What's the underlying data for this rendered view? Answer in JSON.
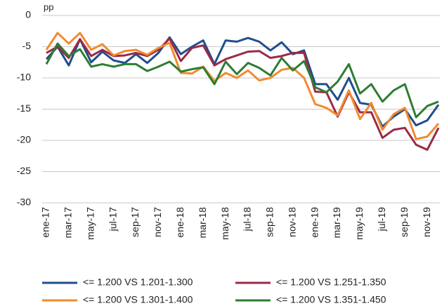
{
  "chart_data": {
    "type": "line",
    "unit_label": "pp",
    "categories": [
      "ene-17",
      null,
      "mar-17",
      null,
      "may-17",
      null,
      "jul-17",
      null,
      "sep-17",
      null,
      "nov-17",
      null,
      "ene-18",
      null,
      "mar-18",
      null,
      "may-18",
      null,
      "jul-18",
      null,
      "sep-18",
      null,
      "nov-18",
      null,
      "ene-19",
      null,
      "mar-19",
      null,
      "may-19",
      null,
      "jul-19",
      null,
      "sep-19",
      null,
      "nov-19",
      null
    ],
    "series": [
      {
        "name": "<= 1.200 VS 1.201-1.300",
        "color": "#1f4e8c",
        "values": [
          -7,
          -5,
          -8,
          -3.8,
          -7.5,
          -5.8,
          -7.2,
          -7.6,
          -6.2,
          -7.6,
          -6,
          -3.5,
          -6.2,
          -5,
          -4,
          -7.8,
          -4,
          -4.2,
          -3.6,
          -4.2,
          -5.6,
          -4.3,
          -6.2,
          -5.6,
          -11,
          -11,
          -13.5,
          -10,
          -14,
          -14.3,
          -17.8,
          -16.2,
          -15,
          -17.6,
          -16.8,
          -14.3
        ]
      },
      {
        "name": "<= 1.200 VS 1.251-1.350",
        "color": "#9b2a46",
        "values": [
          -6,
          -5,
          -6.8,
          -3.8,
          -6.5,
          -5.5,
          -6.5,
          -6.4,
          -6,
          -6.5,
          -5.5,
          -3.7,
          -7.3,
          -5.2,
          -4.8,
          -8,
          -7,
          -6.4,
          -5.8,
          -5.7,
          -6.8,
          -6.5,
          -6,
          -6,
          -12.2,
          -12.3,
          -16.2,
          -12.3,
          -15.5,
          -15.5,
          -19.6,
          -18.3,
          -18,
          -20.7,
          -21.5,
          -18
        ]
      },
      {
        "name": "<= 1.200 VS 1.301-1.400",
        "color": "#f28a2e",
        "values": [
          -5.5,
          -2.8,
          -4.5,
          -2.8,
          -5.5,
          -4.6,
          -6.4,
          -5.7,
          -5.5,
          -6.3,
          -5.2,
          -4.4,
          -9.2,
          -9.3,
          -8.2,
          -10.5,
          -9.2,
          -10,
          -8.8,
          -10.4,
          -10,
          -8.7,
          -8.4,
          -10,
          -14.2,
          -14.8,
          -16,
          -12,
          -16.6,
          -14,
          -18.3,
          -15.8,
          -14.8,
          -19.8,
          -19.4,
          -17.3
        ]
      },
      {
        "name": "<= 1.200 VS 1.351-1.450",
        "color": "#2e7d32",
        "values": [
          -7.8,
          -4.5,
          -6.5,
          -5.4,
          -8.2,
          -7.8,
          -8.2,
          -7.8,
          -7.8,
          -8.9,
          -8.2,
          -7.4,
          -9,
          -8.6,
          -8.3,
          -11,
          -7.4,
          -9.4,
          -7.6,
          -8.4,
          -9.6,
          -6.8,
          -8.8,
          -7.3,
          -11.5,
          -12.3,
          -10.6,
          -7.8,
          -12.5,
          -11,
          -13.8,
          -12,
          -11,
          -16.3,
          -14.5,
          -13.8
        ]
      }
    ],
    "ylim": [
      -30,
      0
    ],
    "yticks": [
      0,
      -5,
      -10,
      -15,
      -20,
      -25,
      -30
    ],
    "grid": true
  }
}
